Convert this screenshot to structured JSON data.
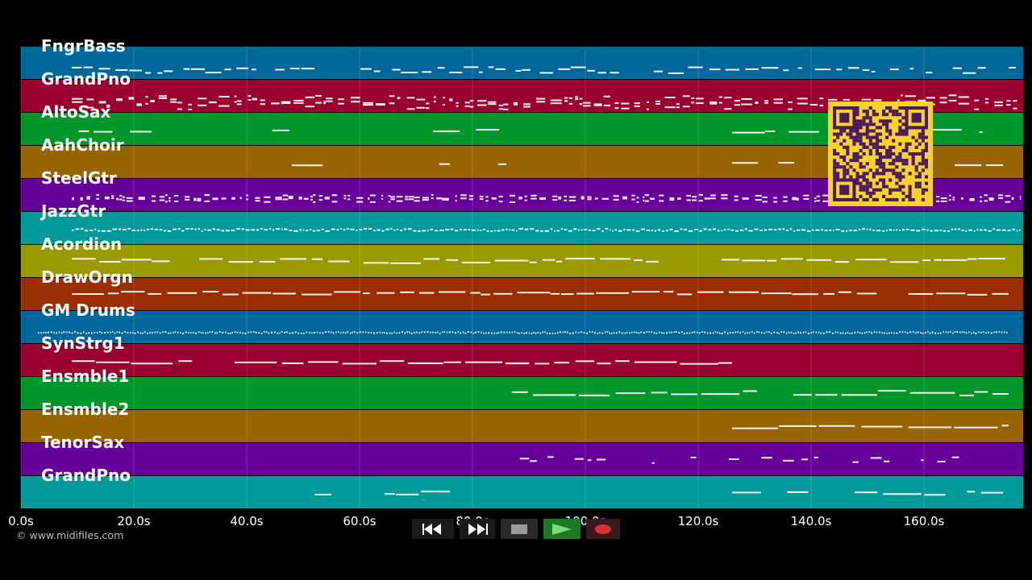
{
  "tracks": [
    {
      "name": "FngrBass",
      "color": "#00679a"
    },
    {
      "name": "GrandPno",
      "color": "#990030"
    },
    {
      "name": "AltoSax",
      "color": "#00962a"
    },
    {
      "name": "AahChoir",
      "color": "#986400"
    },
    {
      "name": "SteelGtr",
      "color": "#67009a"
    },
    {
      "name": "JazzGtr",
      "color": "#009a9a"
    },
    {
      "name": "Acordion",
      "color": "#9a9a00"
    },
    {
      "name": "DrawOrgn",
      "color": "#9a2e00"
    },
    {
      "name": "GM Drums",
      "color": "#00679a"
    },
    {
      "name": "SynStrg1",
      "color": "#990030"
    },
    {
      "name": "Ensmble1",
      "color": "#00962a"
    },
    {
      "name": "Ensmble2",
      "color": "#986400"
    },
    {
      "name": "TenorSax",
      "color": "#67009a"
    },
    {
      "name": "GrandPno",
      "color": "#009a9a"
    }
  ],
  "time_axis": {
    "unit": "s",
    "ticks": [
      "0.0s",
      "20.0s",
      "40.0s",
      "60.0s",
      "80.0s",
      "100.0s",
      "120.0s",
      "140.0s",
      "160.0s"
    ],
    "max_seconds": 177.5
  },
  "copyright": "© www.midifiles.com",
  "controls": {
    "rewind": "rewind-icon",
    "fast_forward": "fast-forward-icon",
    "stop": "stop-icon",
    "play": "play-icon",
    "record": "record-icon"
  },
  "qr_code": "qr-code"
}
